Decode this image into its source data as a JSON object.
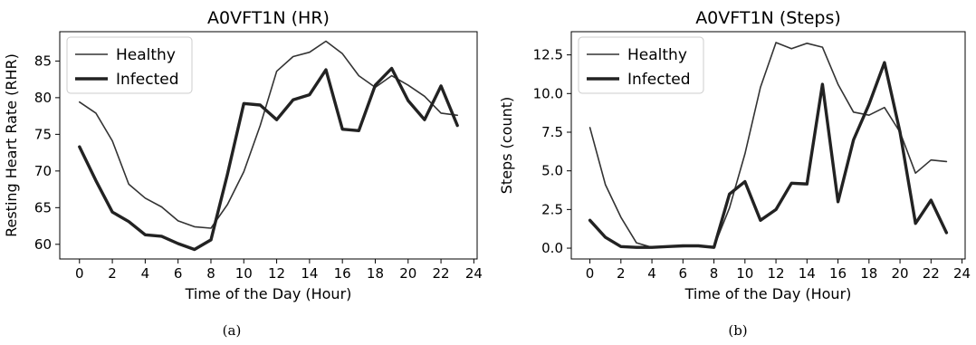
{
  "chart_data": [
    {
      "type": "line",
      "title": "A0VFT1N (HR)",
      "xlabel": "Time of the Day (Hour)",
      "ylabel": "Resting Heart Rate (RHR)",
      "xlim": [
        -1.2,
        24.2
      ],
      "ylim": [
        58,
        89
      ],
      "xticks": [
        0,
        2,
        4,
        6,
        8,
        10,
        12,
        14,
        16,
        18,
        20,
        22,
        24
      ],
      "yticks": [
        60,
        65,
        70,
        75,
        80,
        85
      ],
      "ytick_labels": [
        "60",
        "65",
        "70",
        "75",
        "80",
        "85"
      ],
      "legend_position": "upper-left",
      "x": [
        0,
        1,
        2,
        3,
        4,
        5,
        6,
        7,
        8,
        9,
        10,
        11,
        12,
        13,
        14,
        15,
        16,
        17,
        18,
        19,
        20,
        21,
        22,
        23
      ],
      "series": [
        {
          "name": "Healthy",
          "color": "#333333",
          "style": "thin",
          "values": [
            79.4,
            77.9,
            74.1,
            68.2,
            66.3,
            65.1,
            63.2,
            62.4,
            62.2,
            65.4,
            69.9,
            76.2,
            83.6,
            85.6,
            86.2,
            87.7,
            86.0,
            83.0,
            81.4,
            83.0,
            81.7,
            80.2,
            77.9,
            77.6
          ]
        },
        {
          "name": "Infected",
          "color": "#222222",
          "style": "thick",
          "values": [
            73.3,
            68.7,
            64.4,
            63.1,
            61.3,
            61.1,
            60.1,
            59.3,
            60.6,
            69.5,
            79.2,
            79.0,
            77.0,
            79.7,
            80.4,
            83.8,
            75.7,
            75.5,
            81.7,
            84.0,
            79.6,
            77.0,
            81.6,
            76.2
          ]
        }
      ],
      "subcaption": "(a)"
    },
    {
      "type": "line",
      "title": "A0VFT1N (Steps)",
      "xlabel": "Time of the Day (Hour)",
      "ylabel": "Steps (count)",
      "xlim": [
        -1.2,
        24.2
      ],
      "ylim": [
        -0.7,
        14.0
      ],
      "xticks": [
        0,
        2,
        4,
        6,
        8,
        10,
        12,
        14,
        16,
        18,
        20,
        22,
        24
      ],
      "yticks": [
        0,
        2.5,
        5,
        7.5,
        10,
        12.5
      ],
      "ytick_labels": [
        "0.0",
        "2.5",
        "5.0",
        "7.5",
        "10.0",
        "12.5"
      ],
      "legend_position": "upper-left",
      "x": [
        0,
        1,
        2,
        3,
        4,
        5,
        6,
        7,
        8,
        9,
        10,
        11,
        12,
        13,
        14,
        15,
        16,
        17,
        18,
        19,
        20,
        21,
        22,
        23
      ],
      "series": [
        {
          "name": "Healthy",
          "color": "#333333",
          "style": "thin",
          "values": [
            7.8,
            4.1,
            2.0,
            0.35,
            0.05,
            0.1,
            0.1,
            0.15,
            0.1,
            2.6,
            6.1,
            10.4,
            13.3,
            12.9,
            13.25,
            13.0,
            10.6,
            8.8,
            8.6,
            9.1,
            7.5,
            4.85,
            5.7,
            5.6
          ]
        },
        {
          "name": "Infected",
          "color": "#222222",
          "style": "thick",
          "values": [
            1.8,
            0.7,
            0.1,
            0.05,
            0.05,
            0.1,
            0.15,
            0.15,
            0.05,
            3.5,
            4.3,
            1.8,
            2.5,
            4.2,
            4.15,
            10.6,
            3.0,
            7.0,
            9.3,
            12.0,
            7.5,
            1.6,
            3.1,
            1.0
          ]
        }
      ],
      "subcaption": "(b)"
    }
  ]
}
